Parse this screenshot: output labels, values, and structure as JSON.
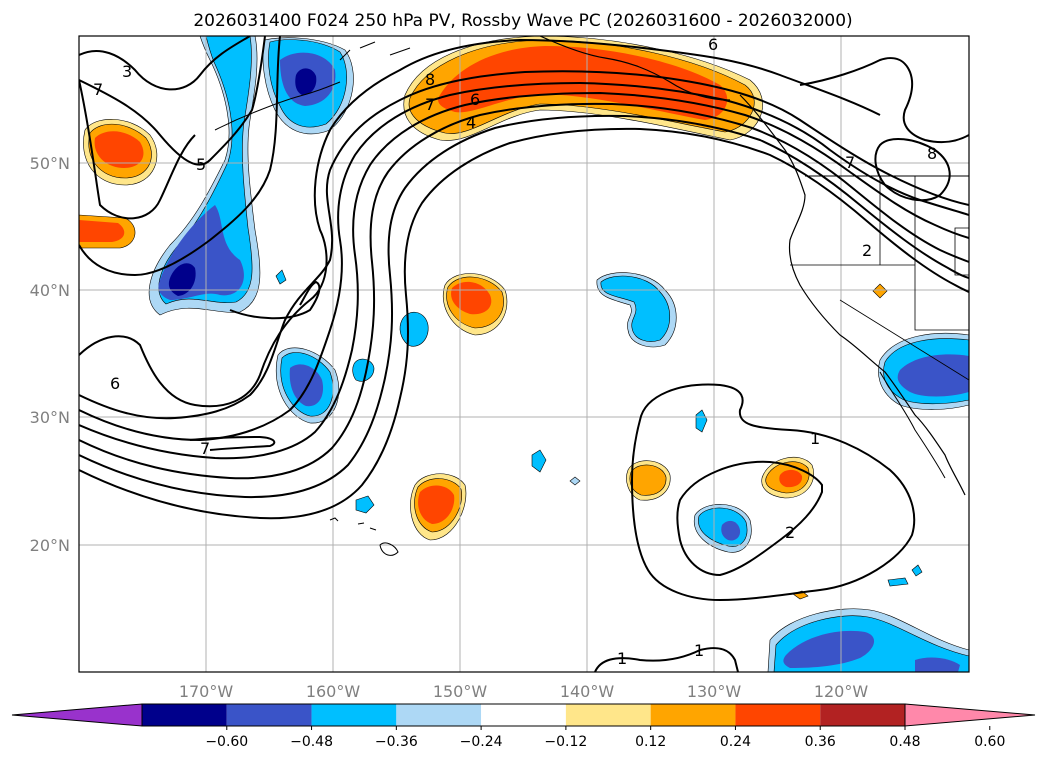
{
  "title": "2026031400 F024 250 hPa PV, Rossby Wave PC (2026031600 - 2026032000)",
  "lon_labels": [
    "170°W",
    "160°W",
    "150°W",
    "140°W",
    "130°W",
    "120°W"
  ],
  "lat_labels": [
    "50°N",
    "40°N",
    "30°N",
    "20°N"
  ],
  "colorbar": {
    "ticks": [
      "−0.60",
      "−0.48",
      "−0.36",
      "−0.24",
      "−0.12",
      "0.12",
      "0.24",
      "0.36",
      "0.48",
      "0.60"
    ],
    "colors": [
      "#9932cc",
      "#00008b",
      "#3a54c8",
      "#00bfff",
      "#add8f5",
      "#ffffff",
      "#ffe68a",
      "#ffa500",
      "#ff4500",
      "#b22222",
      "#ff88aa"
    ]
  },
  "contour_labels": {
    "c3": "3",
    "c5": "5",
    "c6a": "6",
    "c6b": "6",
    "c6c": "6",
    "c7a": "7",
    "c7b": "7",
    "c4": "4",
    "c8a": "8",
    "c8b": "8",
    "c7c": "7",
    "c1a": "1",
    "c2a": "2",
    "c1b": "1",
    "c1c": "1",
    "c2b": "2",
    "c7d": "7"
  },
  "chart_data": {
    "type": "map",
    "projection": "plate carree",
    "region": {
      "lon_range": [
        -180,
        -110
      ],
      "lat_range": [
        10,
        60
      ]
    },
    "field_shaded": "Rossby Wave PC",
    "field_contoured": "250 hPa PV",
    "shading_levels": [
      -0.6,
      -0.48,
      -0.36,
      -0.24,
      -0.12,
      0.12,
      0.24,
      0.36,
      0.48,
      0.6
    ],
    "contour_levels": [
      1,
      2,
      3,
      4,
      5,
      6,
      7,
      8
    ],
    "gridlines": true,
    "colorbar_position": "bottom"
  }
}
